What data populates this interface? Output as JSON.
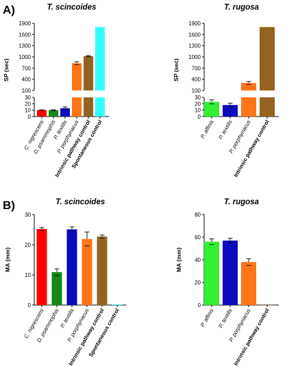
{
  "panels": [
    {
      "id": "A",
      "label": "A)"
    },
    {
      "id": "B",
      "label": "B)"
    }
  ],
  "chart_data": [
    {
      "type": "bar",
      "panel": "A",
      "title": "T. scincoides",
      "ylabel": "SP (sec)",
      "y_axis_break": {
        "lower": [
          0,
          30
        ],
        "upper": [
          100,
          1900
        ]
      },
      "yticks_lower": [
        0,
        10,
        20,
        30
      ],
      "yticks_upper": [
        100,
        400,
        700,
        1000,
        1300,
        1600,
        1900
      ],
      "categories": [
        "C. nigrescens",
        "D. psammophis",
        "P. textilis",
        "P. porphyriacus",
        "Intrinsic pathway control",
        "Spontaneous control"
      ],
      "values": [
        10,
        10,
        13,
        830,
        1020,
        1800
      ],
      "errors": [
        0.5,
        0.5,
        2,
        40,
        15,
        0
      ],
      "colors": [
        "#ff0000",
        "#138a13",
        "#0b0bbf",
        "#ff7518",
        "#946320",
        "#33ffff"
      ]
    },
    {
      "type": "bar",
      "panel": "A",
      "title": "T. rugosa",
      "ylabel": "SP (sec)",
      "y_axis_break": {
        "lower": [
          0,
          30
        ],
        "upper": [
          100,
          1900
        ]
      },
      "yticks_lower": [
        0,
        10,
        20,
        30
      ],
      "yticks_upper": [
        100,
        400,
        700,
        1000,
        1300,
        1600,
        1900
      ],
      "categories": [
        "P. affinis",
        "P. textilis",
        "P. porphyriacus",
        "Intrinsic pathway control"
      ],
      "values": [
        23,
        18,
        300,
        1800
      ],
      "errors": [
        3,
        3,
        40,
        0
      ],
      "colors": [
        "#33ee33",
        "#0b0bbf",
        "#ff7518",
        "#946320"
      ]
    },
    {
      "type": "bar",
      "panel": "B",
      "title": "T. scincoides",
      "ylabel": "MA (mm)",
      "ylim": [
        0,
        30
      ],
      "yticks": [
        0,
        10,
        20,
        30
      ],
      "categories": [
        "C. nigrescens",
        "D. psammophis",
        "P. textilis",
        "P. porphyriacus",
        "Intrinsic pathway control",
        "Spontaneous control"
      ],
      "values": [
        25.2,
        10.9,
        25.1,
        21.9,
        22.7,
        0.2
      ],
      "errors": [
        0.5,
        1.1,
        0.8,
        2.3,
        0.5,
        0
      ],
      "colors": [
        "#ff0000",
        "#138a13",
        "#0b0bbf",
        "#ff7518",
        "#946320",
        "#33ffff"
      ]
    },
    {
      "type": "bar",
      "panel": "B",
      "title": "T. rugosa",
      "ylabel": "MA (mm)",
      "ylim": [
        0,
        80
      ],
      "yticks": [
        0,
        20,
        40,
        60,
        80
      ],
      "categories": [
        "P. affinis",
        "P. textilis",
        "P. porphyriacus",
        "Intrinsic pathway control"
      ],
      "values": [
        56,
        57,
        38,
        0
      ],
      "errors": [
        2.5,
        2,
        3,
        0
      ],
      "colors": [
        "#33ee33",
        "#0b0bbf",
        "#ff7518",
        "#946320"
      ]
    }
  ]
}
